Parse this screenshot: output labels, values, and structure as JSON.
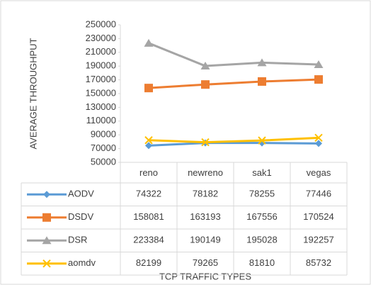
{
  "chart_data": {
    "type": "line",
    "y_label": "AVERAGE THROUGHPUT",
    "x_label": "TCP TRAFFIC TYPES",
    "categories": [
      "reno",
      "newreno",
      "sak1",
      "vegas"
    ],
    "series": [
      {
        "name": "AODV",
        "color": "#5b9bd5",
        "marker": "diamond",
        "values": [
          74322,
          78182,
          78255,
          77446
        ]
      },
      {
        "name": "DSDV",
        "color": "#ed7d31",
        "marker": "square",
        "values": [
          158081,
          163193,
          167556,
          170524
        ]
      },
      {
        "name": "DSR",
        "color": "#a5a5a5",
        "marker": "triangle",
        "values": [
          223384,
          190149,
          195028,
          192257
        ]
      },
      {
        "name": "aomdv",
        "color": "#ffc000",
        "marker": "x",
        "values": [
          82199,
          79265,
          81810,
          85732
        ]
      }
    ],
    "ylim": [
      50000,
      250000
    ],
    "yticks": [
      50000,
      70000,
      90000,
      110000,
      130000,
      150000,
      170000,
      190000,
      210000,
      230000,
      250000
    ],
    "grid": false
  }
}
